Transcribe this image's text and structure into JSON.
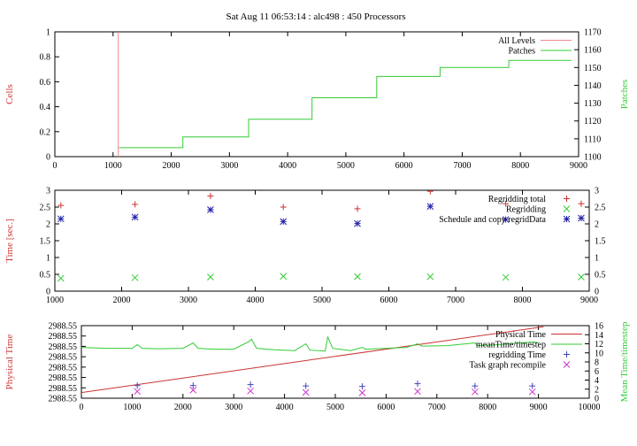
{
  "page": {
    "title": "Sat Aug 11 06:53:14 : alc498 : 450 Processors"
  },
  "colors": {
    "red": "#cc3333",
    "green": "#33cc33",
    "blue": "#2222aa",
    "magenta": "#cc33cc",
    "axis": "#000000",
    "frame": "#000000"
  },
  "chart_data": [
    {
      "type": "line",
      "panel": "top",
      "xlabel": "",
      "ylabel": "Cells",
      "y2label": "Patches",
      "xlim": [
        0,
        9000
      ],
      "ylim": [
        0,
        1
      ],
      "y2lim": [
        1100,
        1170
      ],
      "xticks": [
        "0",
        "1000",
        "2000",
        "3000",
        "4000",
        "5000",
        "6000",
        "7000",
        "8000",
        "9000"
      ],
      "yticks": [
        "0",
        "0.2",
        "0.4",
        "0.6",
        "0.8",
        "1"
      ],
      "y2ticks": [
        "1100",
        "1110",
        "1120",
        "1130",
        "1140",
        "1150",
        "1160",
        "1170"
      ],
      "legend_position": "top-right",
      "series": [
        {
          "name": "All Levels",
          "color": "#ee8888",
          "axis": "y1",
          "x": [
            1090,
            1090
          ],
          "y": [
            0,
            1
          ]
        },
        {
          "name": "Patches",
          "color": "#33cc33",
          "axis": "y2",
          "step": true,
          "x": [
            1100,
            2200,
            2200,
            3330,
            3330,
            4420,
            4420,
            5530,
            5530,
            6620,
            6620,
            7800,
            7800,
            8880
          ],
          "y": [
            1105,
            1105,
            1111,
            1111,
            1121,
            1121,
            1133,
            1133,
            1145,
            1145,
            1150,
            1150,
            1154,
            1154
          ]
        }
      ]
    },
    {
      "type": "scatter",
      "panel": "middle",
      "xlabel": "",
      "ylabel": "Time [sec.]",
      "xlim": [
        1000,
        9000
      ],
      "ylim": [
        0,
        3
      ],
      "xticks": [
        "1000",
        "2000",
        "3000",
        "4000",
        "5000",
        "6000",
        "7000",
        "8000",
        "9000"
      ],
      "yticks": [
        "0",
        "0.5",
        "1",
        "1.5",
        "2",
        "2.5",
        "3"
      ],
      "y2ticks": [
        "0",
        "0.5",
        "1",
        "1.5",
        "2",
        "2.5",
        "3"
      ],
      "legend_position": "top-right",
      "series": [
        {
          "name": "Regridding total",
          "marker": "+",
          "color": "#cc3333",
          "x": [
            1090,
            2200,
            3330,
            4420,
            5530,
            6620,
            7750,
            8880
          ],
          "y": [
            2.55,
            2.58,
            2.83,
            2.5,
            2.45,
            2.97,
            2.6,
            2.6
          ]
        },
        {
          "name": "Regridding",
          "marker": "x",
          "color": "#33cc33",
          "x": [
            1090,
            2200,
            3330,
            4420,
            5530,
            6620,
            7750,
            8880
          ],
          "y": [
            0.38,
            0.4,
            0.42,
            0.44,
            0.43,
            0.43,
            0.41,
            0.42
          ]
        },
        {
          "name": "Schedule and copy regridData",
          "marker": "*",
          "color": "#2222aa",
          "x": [
            1090,
            2200,
            3330,
            4420,
            5530,
            6620,
            7750,
            8880
          ],
          "y": [
            2.15,
            2.2,
            2.42,
            2.07,
            2.01,
            2.52,
            2.13,
            2.17
          ]
        }
      ]
    },
    {
      "type": "line",
      "panel": "bottom",
      "xlabel": "",
      "ylabel": "Physical Time",
      "y2label": "Mean Time/timestep",
      "xlim": [
        0,
        10000
      ],
      "ylim": [
        0,
        7
      ],
      "y2lim": [
        0,
        16
      ],
      "xticks": [
        "0",
        "1000",
        "2000",
        "3000",
        "4000",
        "5000",
        "6000",
        "7000",
        "8000",
        "9000",
        "10000"
      ],
      "yticks": [
        "2988.55",
        "2988.55",
        "2988.55",
        "2988.55",
        "2988.55",
        "2988.55",
        "2988.55",
        "2988.55"
      ],
      "y2ticks": [
        "0",
        "2",
        "4",
        "6",
        "8",
        "10",
        "12",
        "14",
        "16"
      ],
      "legend_position": "top-right",
      "series": [
        {
          "name": "Physical Time",
          "color": "#cc3333",
          "axis": "y1",
          "x": [
            0,
            9100
          ],
          "y": [
            0.55,
            6.9
          ]
        },
        {
          "name": "meanTime/timestep",
          "color": "#33cc33",
          "axis": "y2",
          "x": [
            0,
            500,
            1000,
            1100,
            1200,
            1500,
            2000,
            2200,
            2300,
            2600,
            3000,
            3300,
            3350,
            3450,
            3800,
            4200,
            4420,
            4500,
            4800,
            4850,
            4950,
            5300,
            5530,
            5600,
            6000,
            6400,
            6620,
            6700,
            7200,
            7750,
            7800,
            8200,
            8880,
            9000
          ],
          "y": [
            11.2,
            11.0,
            11.0,
            11.8,
            11.0,
            10.9,
            11.0,
            12.2,
            11.0,
            10.8,
            10.8,
            12.5,
            13.0,
            11.0,
            10.7,
            10.5,
            12.0,
            10.6,
            10.4,
            13.5,
            11.0,
            10.5,
            11.2,
            10.8,
            11.0,
            11.2,
            12.0,
            11.5,
            11.6,
            12.2,
            11.6,
            11.8,
            12.4,
            12.2
          ]
        },
        {
          "name": "regridding Time",
          "marker": "+",
          "color": "#4444bb",
          "axis": "y2",
          "x": [
            1100,
            2200,
            3330,
            4420,
            5530,
            6620,
            7750,
            8880
          ],
          "y": [
            2.8,
            2.8,
            3.0,
            2.7,
            2.6,
            3.2,
            2.7,
            2.7
          ]
        },
        {
          "name": "Task graph recompile",
          "marker": "x",
          "color": "#cc33cc",
          "axis": "y2",
          "x": [
            1100,
            2200,
            3330,
            4420,
            5530,
            6620,
            7750,
            8880
          ],
          "y": [
            1.5,
            1.8,
            1.6,
            1.3,
            1.2,
            1.5,
            1.4,
            1.4
          ]
        }
      ]
    }
  ]
}
